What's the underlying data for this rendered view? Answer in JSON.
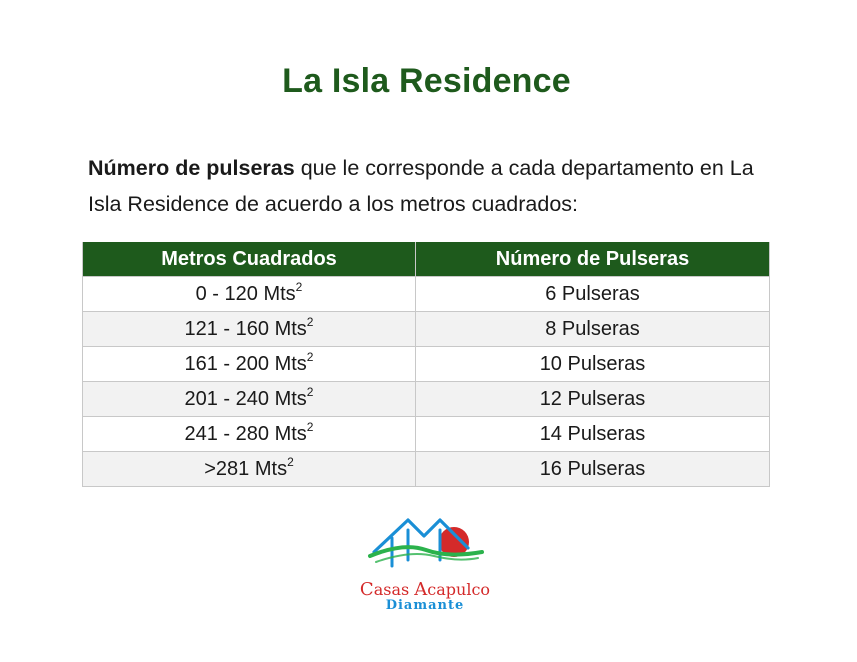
{
  "title": "La Isla Residence",
  "intro": {
    "bold": "Número de pulseras",
    "rest": " que le corresponde a cada departamento en La Isla Residence de acuerdo a los metros cuadrados:"
  },
  "table": {
    "headers": [
      "Metros Cuadrados",
      "Número de Pulseras"
    ],
    "unit": "Mts",
    "unit_superscript": "2",
    "rows": [
      {
        "range": "0 - 120",
        "pulseras": "6 Pulseras"
      },
      {
        "range": "121 - 160",
        "pulseras": "8 Pulseras"
      },
      {
        "range": "161 - 200",
        "pulseras": "10 Pulseras"
      },
      {
        "range": "201 - 240",
        "pulseras": "12 Pulseras"
      },
      {
        "range": "241 - 280",
        "pulseras": "14 Pulseras"
      },
      {
        "range": ">281",
        "pulseras": "16 Pulseras"
      }
    ]
  },
  "logo": {
    "line1_cap1": "C",
    "line1_part1": "asas ",
    "line1_cap2": "A",
    "line1_part2": "capulco",
    "line2": "Diamante"
  },
  "colors": {
    "brand_green": "#1e5a1c",
    "logo_red": "#d42a2a",
    "logo_blue": "#1a8fd6",
    "logo_green": "#2bb24c"
  }
}
